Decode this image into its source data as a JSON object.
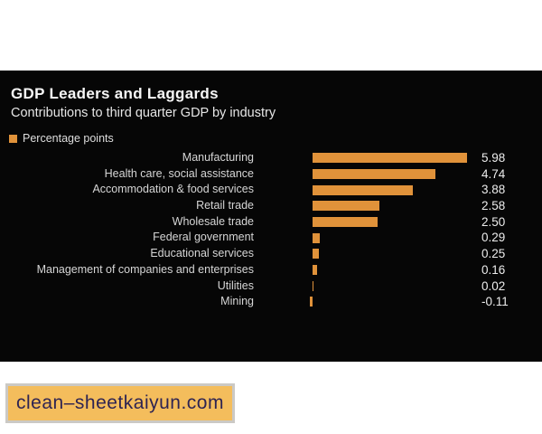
{
  "header": {
    "title": "GDP Leaders and Laggards",
    "subtitle": "Contributions to third quarter GDP by industry"
  },
  "legend": {
    "label": "Percentage points",
    "swatch_color": "#e0923a"
  },
  "chart_data": {
    "type": "bar",
    "orientation": "horizontal",
    "title": "GDP Leaders and Laggards",
    "subtitle": "Contributions to third quarter GDP by industry",
    "unit": "Percentage points",
    "categories": [
      "Manufacturing",
      "Health care, social assistance",
      "Accommodation & food services",
      "Retail trade",
      "Wholesale trade",
      "Federal government",
      "Educational services",
      "Management of companies and enterprises",
      "Utilities",
      "Mining"
    ],
    "values": [
      5.98,
      4.74,
      3.88,
      2.58,
      2.5,
      0.29,
      0.25,
      0.16,
      0.02,
      -0.11
    ],
    "value_labels": [
      "5.98",
      "4.74",
      "3.88",
      "2.58",
      "2.50",
      "0.29",
      "0.25",
      "0.16",
      "0.02",
      "-0.11"
    ],
    "bar_color": "#e0923a",
    "xlim": [
      -0.2,
      6.2
    ],
    "grid": false,
    "legend_position": "top-left",
    "value_labels_position": "right-column"
  },
  "watermark": {
    "text": "clean–sheetkaiyun.com",
    "background": "#f4bd5c",
    "text_color": "#2e2452"
  }
}
